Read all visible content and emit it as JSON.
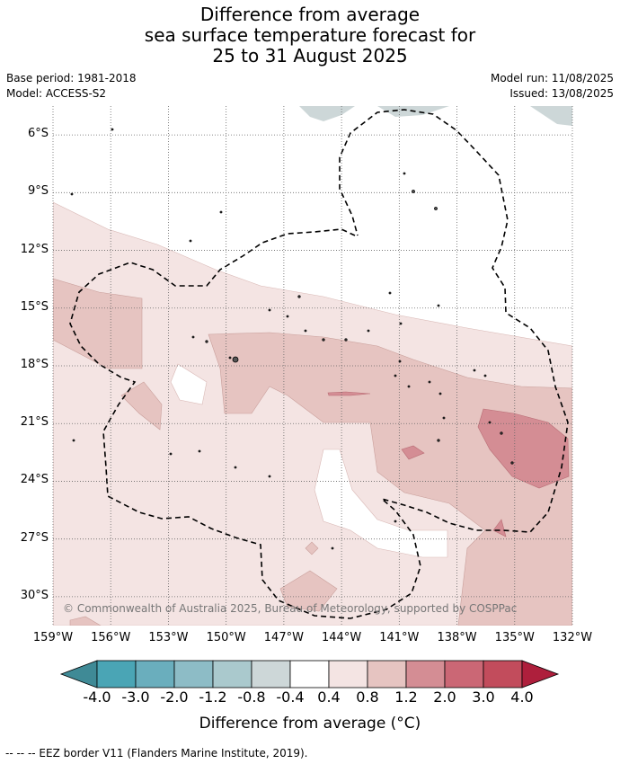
{
  "title": {
    "line1": "Difference from average",
    "line2": "sea surface temperature forecast for",
    "line3": "25 to 31 August 2025"
  },
  "meta": {
    "base_period": "Base period: 1981-2018",
    "model": "Model: ACCESS-S2",
    "model_run": "Model run: 11/08/2025",
    "issued": "Issued: 13/08/2025"
  },
  "map": {
    "lon_range": [
      -159,
      -132
    ],
    "lat_range": [
      -31.5,
      -4.5
    ],
    "lat_ticks": [
      "6°S",
      "9°S",
      "12°S",
      "15°S",
      "18°S",
      "21°S",
      "24°S",
      "27°S",
      "30°S"
    ],
    "lon_ticks": [
      "159°W",
      "156°W",
      "153°W",
      "150°W",
      "147°W",
      "144°W",
      "141°W",
      "138°W",
      "135°W",
      "132°W"
    ],
    "copyright": "© Commonwealth of Australia 2025, Bureau of Meteorology, supported by COSPPac",
    "colors": {
      "band_0.4_0.8": "#f4e4e3",
      "band_0.8_1.2": "#e6c4c1",
      "band_1.2_2.0": "#d48d94",
      "band_-0.8_-0.4": "#cdd7d8",
      "land": "#999999"
    }
  },
  "colorbar": {
    "labels": [
      "-4.0",
      "-3.0",
      "-2.0",
      "-1.2",
      "-0.8",
      "-0.4",
      "0.4",
      "0.8",
      "1.2",
      "2.0",
      "3.0",
      "4.0"
    ],
    "colors": [
      "#3f8a96",
      "#4aa5b5",
      "#6aaebd",
      "#8dbcc6",
      "#aac9cd",
      "#cdd7d8",
      "#ffffff",
      "#f4e4e3",
      "#e6c4c1",
      "#d48d94",
      "#cb6775",
      "#c24c5c",
      "#ae1f3c"
    ],
    "label": "Difference from average (°C)"
  },
  "footer": "--  --  -- EEZ border V11 (Flanders Marine Institute, 2019)."
}
